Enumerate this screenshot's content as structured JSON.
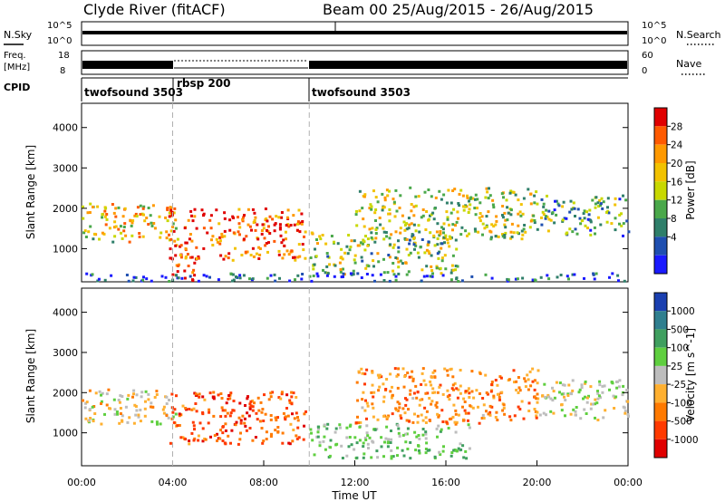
{
  "header": {
    "title": "Clyde River (fitACF)",
    "beam_info": "Beam 00 25/Aug/2015 - 26/Aug/2015"
  },
  "strip_nsky": {
    "left_label": "N.Sky",
    "left_tick_top": "10^5",
    "left_tick_bottom": "10^0",
    "right_tick_top": "10^5",
    "right_tick_bottom": "10^0",
    "right_label": "N.Search"
  },
  "strip_freq": {
    "left_label_1": "Freq.",
    "left_label_2": "[MHz]",
    "left_tick_top": "18",
    "left_tick_bottom": "8",
    "right_tick_top": "60",
    "right_tick_bottom": "0",
    "right_label": "Nave"
  },
  "cpid": {
    "label": "CPID",
    "segments": [
      {
        "name": "twofsound 3503",
        "start_hour": 0
      },
      {
        "name": "rbsp 200",
        "start_hour": 4
      },
      {
        "name": "twofsound 3503",
        "start_hour": 10
      }
    ]
  },
  "chart_data": [
    {
      "type": "heatmap",
      "quantity": "Power",
      "ylabel": "Slant Range [km]",
      "colorbar_label": "Power [dB]",
      "colorbar_ticks": [
        "28",
        "24",
        "20",
        "16",
        "12",
        "8",
        "4"
      ],
      "colorbar_colors": [
        "#e00000",
        "#ff5a00",
        "#ff9900",
        "#f2c200",
        "#c8d800",
        "#4aa84a",
        "#2f7f6a",
        "#1f4fb0",
        "#1a1aff"
      ],
      "y_ticks": [
        "4000",
        "3000",
        "2000",
        "1000"
      ],
      "yrange": [
        180,
        4600
      ],
      "regions": [
        {
          "t": [
            0.0,
            4.2
          ],
          "r": [
            1150,
            2100
          ],
          "level": 0.6
        },
        {
          "t": [
            3.8,
            9.8
          ],
          "r": [
            700,
            2000
          ],
          "level": 0.85
        },
        {
          "t": [
            3.9,
            5.0
          ],
          "r": [
            180,
            800
          ],
          "level": 0.9
        },
        {
          "t": [
            10.0,
            16.5
          ],
          "r": [
            350,
            1400
          ],
          "level": 0.45
        },
        {
          "t": [
            12.0,
            20.0
          ],
          "r": [
            1200,
            2500
          ],
          "level": 0.5
        },
        {
          "t": [
            20.0,
            24.0
          ],
          "r": [
            1300,
            2300
          ],
          "level": 0.35
        },
        {
          "t": [
            0.0,
            24.0
          ],
          "r": [
            180,
            380
          ],
          "level": 0.15
        }
      ]
    },
    {
      "type": "heatmap",
      "quantity": "Velocity",
      "ylabel": "Slant Range [km]",
      "xlabel": "Time UT",
      "colorbar_label": "Velocity [m s^-1]",
      "colorbar_ticks": [
        "1000",
        "500",
        "100",
        "25",
        "-25",
        "-100",
        "-500",
        "-1000"
      ],
      "colorbar_colors": [
        "#1a3fb0",
        "#2f7f8f",
        "#3f9f5f",
        "#5fcf3f",
        "#bdbdbd",
        "#ffb030",
        "#ff7a00",
        "#ff3a00",
        "#e00000"
      ],
      "y_ticks": [
        "4000",
        "3000",
        "2000",
        "1000"
      ],
      "x_ticks": [
        "00:00",
        "04:00",
        "08:00",
        "12:00",
        "16:00",
        "20:00",
        "00:00"
      ],
      "xrange_hours": [
        0,
        24
      ],
      "yrange": [
        180,
        4600
      ],
      "regions": [
        {
          "t": [
            0.0,
            4.2
          ],
          "r": [
            1200,
            2100
          ],
          "level": -0.1
        },
        {
          "t": [
            3.8,
            9.8
          ],
          "r": [
            700,
            2000
          ],
          "level": -0.6
        },
        {
          "t": [
            10.0,
            17.0
          ],
          "r": [
            350,
            1200
          ],
          "level": 0.2
        },
        {
          "t": [
            12.0,
            20.0
          ],
          "r": [
            1200,
            2600
          ],
          "level": -0.4
        },
        {
          "t": [
            20.0,
            24.0
          ],
          "r": [
            1300,
            2300
          ],
          "level": 0.0
        }
      ]
    }
  ]
}
